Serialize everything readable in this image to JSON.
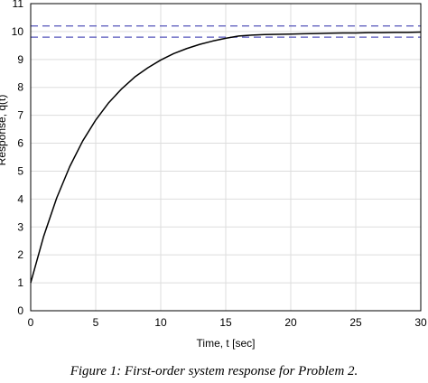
{
  "chart_data": {
    "type": "line",
    "title": "",
    "xlabel": "Time, t [sec]",
    "ylabel": "Response, q(t)",
    "xlim": [
      0,
      30
    ],
    "ylim": [
      0,
      11
    ],
    "xticks": [
      0,
      5,
      10,
      15,
      20,
      25,
      30
    ],
    "yticks": [
      0,
      1,
      2,
      3,
      4,
      5,
      6,
      7,
      8,
      9,
      10,
      11
    ],
    "grid": true,
    "colors": {
      "curve": "#000000",
      "bands": "#5555bb",
      "grid": "#dddddd"
    },
    "series": [
      {
        "x": [
          0,
          1,
          2,
          3,
          4,
          5,
          6,
          7,
          8,
          9,
          10,
          11,
          12,
          13,
          14,
          15,
          16,
          17,
          18,
          19,
          20,
          21,
          22,
          23,
          24,
          25,
          26,
          27,
          28,
          29,
          30
        ],
        "values": [
          1.0,
          2.67,
          4.04,
          5.16,
          6.08,
          6.83,
          7.45,
          7.95,
          8.37,
          8.7,
          8.98,
          9.21,
          9.39,
          9.54,
          9.66,
          9.76,
          9.84,
          9.87,
          9.89,
          9.9,
          9.91,
          9.92,
          9.93,
          9.94,
          9.95,
          9.95,
          9.96,
          9.96,
          9.97,
          9.97,
          9.98
        ]
      }
    ],
    "reference_lines": [
      {
        "y": 10.2,
        "style": "dashed"
      },
      {
        "y": 9.8,
        "style": "dashed"
      }
    ]
  },
  "caption": "Figure 1: First-order system response for Problem 2."
}
